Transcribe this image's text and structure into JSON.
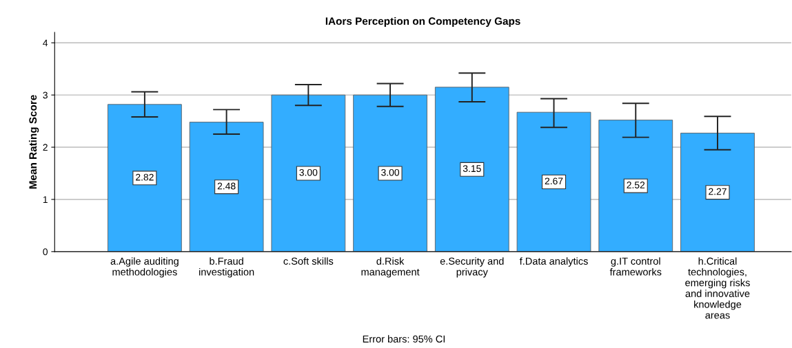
{
  "chart_data": {
    "type": "bar",
    "title": "IAors Perception on Competency Gaps",
    "ylabel": "Mean Rating Score",
    "categories": [
      "a.Agile auditing\nmethodologies",
      "b.Fraud\ninvestigation",
      "c.Soft skills",
      "d.Risk\nmanagement",
      "e.Security and\nprivacy",
      "f.Data analytics",
      "g.IT control\nframeworks",
      "h.Critical\ntechnologies,\nemerging risks\nand innovative\nknowledge\nareas"
    ],
    "values": [
      2.82,
      2.48,
      3.0,
      3.0,
      3.15,
      2.67,
      2.52,
      2.27
    ],
    "value_labels": [
      "2.82",
      "2.48",
      "3.00",
      "3.00",
      "3.15",
      "2.67",
      "2.52",
      "2.27"
    ],
    "errors": [
      [
        2.58,
        3.06
      ],
      [
        2.25,
        2.72
      ],
      [
        2.8,
        3.2
      ],
      [
        2.78,
        3.22
      ],
      [
        2.87,
        3.42
      ],
      [
        2.38,
        2.93
      ],
      [
        2.19,
        2.84
      ],
      [
        1.95,
        2.59
      ]
    ],
    "color": "#33adff",
    "ylim": [
      0,
      4.2
    ],
    "yticks": [
      0,
      1,
      2,
      3,
      4
    ],
    "grid": "y",
    "annotations": [
      "Error bars: 95% CI"
    ]
  }
}
